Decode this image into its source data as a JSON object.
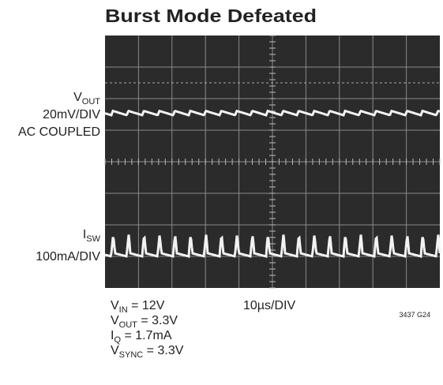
{
  "header": {
    "title": "Burst Mode Defeated"
  },
  "channels": [
    {
      "symbol": "V",
      "subscript": "OUT",
      "scale": "20mV/DIV",
      "coupling": "AC COUPLED"
    },
    {
      "symbol": "I",
      "subscript": "SW",
      "scale": "100mA/DIV"
    }
  ],
  "conditions": [
    {
      "symbol": "V",
      "subscript": "IN",
      "value": " = 12V"
    },
    {
      "symbol": "V",
      "subscript": "OUT",
      "value": " = 3.3V"
    },
    {
      "symbol": "I",
      "subscript": "Q",
      "value": " = 1.7mA"
    },
    {
      "symbol": "V",
      "subscript": "SYNC",
      "value": " = 3.3V"
    }
  ],
  "timebase": "10µs/DIV",
  "figure_id": "3437 G24"
}
